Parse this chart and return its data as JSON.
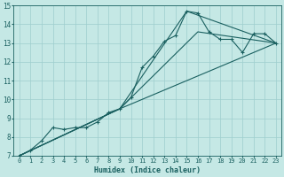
{
  "xlabel": "Humidex (Indice chaleur)",
  "xlim": [
    -0.5,
    23.5
  ],
  "ylim": [
    7,
    15
  ],
  "xticks": [
    0,
    1,
    2,
    3,
    4,
    5,
    6,
    7,
    8,
    9,
    10,
    11,
    12,
    13,
    14,
    15,
    16,
    17,
    18,
    19,
    20,
    21,
    22,
    23
  ],
  "yticks": [
    7,
    8,
    9,
    10,
    11,
    12,
    13,
    14,
    15
  ],
  "background_color": "#c5e8e5",
  "line_color": "#1a6060",
  "grid_color": "#9ecece",
  "lines": [
    {
      "x": [
        0,
        1,
        2,
        3,
        4,
        5,
        6,
        7,
        8,
        9,
        10,
        11,
        12,
        13,
        14,
        15,
        16,
        17,
        18,
        19,
        20,
        21,
        22,
        23
      ],
      "y": [
        7.0,
        7.3,
        7.8,
        8.5,
        8.4,
        8.5,
        8.5,
        8.8,
        9.3,
        9.5,
        10.1,
        11.7,
        12.3,
        13.1,
        13.4,
        14.7,
        14.6,
        13.6,
        13.2,
        13.2,
        12.5,
        13.5,
        13.5,
        13.0
      ],
      "marker": true
    },
    {
      "x": [
        0,
        9,
        15,
        23
      ],
      "y": [
        7.0,
        9.5,
        14.7,
        13.0
      ],
      "marker": false
    },
    {
      "x": [
        0,
        9,
        16,
        23
      ],
      "y": [
        7.0,
        9.5,
        13.6,
        13.0
      ],
      "marker": false
    },
    {
      "x": [
        0,
        9,
        23
      ],
      "y": [
        7.0,
        9.5,
        13.0
      ],
      "marker": false
    }
  ]
}
